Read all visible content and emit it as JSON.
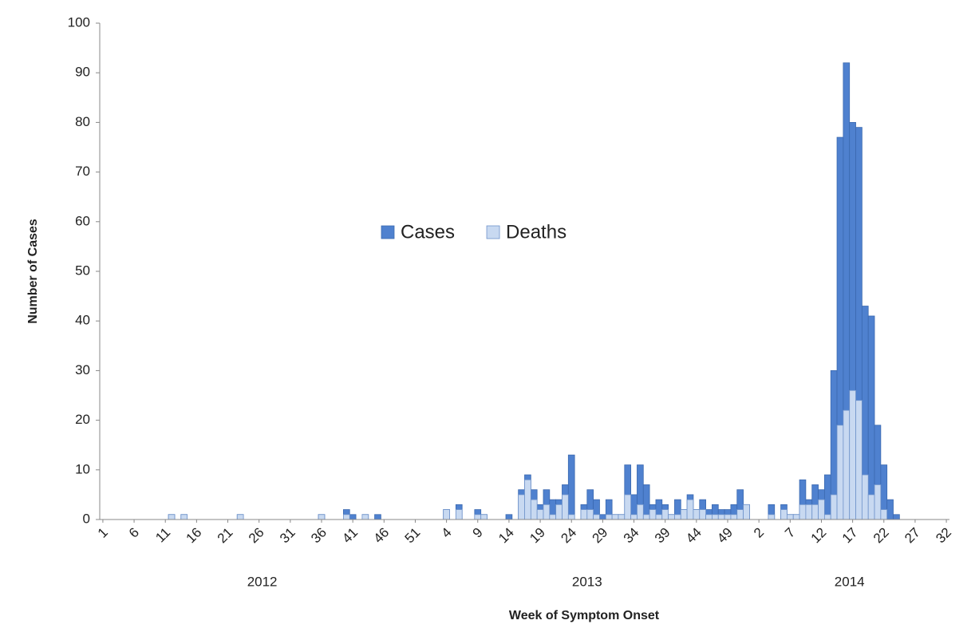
{
  "chart_data": {
    "type": "bar",
    "overlap": true,
    "x_label": "Week of Symptom Onset",
    "y_label": "Number of Cases",
    "categories": [
      "1",
      null,
      null,
      null,
      null,
      "6",
      null,
      null,
      null,
      null,
      "11",
      null,
      null,
      null,
      null,
      "16",
      null,
      null,
      null,
      null,
      "21",
      null,
      null,
      null,
      null,
      "26",
      null,
      null,
      null,
      null,
      "31",
      null,
      null,
      null,
      null,
      "36",
      null,
      null,
      null,
      null,
      "41",
      null,
      null,
      null,
      null,
      "46",
      null,
      null,
      null,
      null,
      "51",
      null,
      null,
      null,
      null,
      "4",
      null,
      null,
      null,
      null,
      "9",
      null,
      null,
      null,
      null,
      "14",
      null,
      null,
      null,
      null,
      "19",
      null,
      null,
      null,
      null,
      "24",
      null,
      null,
      null,
      null,
      "29",
      null,
      null,
      null,
      null,
      "34",
      null,
      null,
      null,
      null,
      "39",
      null,
      null,
      null,
      null,
      "44",
      null,
      null,
      null,
      null,
      "49",
      null,
      null,
      null,
      null,
      "2",
      null,
      null,
      null,
      null,
      "7",
      null,
      null,
      null,
      null,
      "12",
      null,
      null,
      null,
      null,
      "17",
      null,
      null,
      null,
      null,
      "22",
      null,
      null,
      null,
      null,
      "27",
      null,
      null,
      null,
      null,
      "32"
    ],
    "year_groups": [
      {
        "label": "2012",
        "span": 52
      },
      {
        "label": "2013",
        "span": 52
      },
      {
        "label": "2014",
        "span": 32
      }
    ],
    "series": [
      {
        "name": "Cases",
        "color": "#4f81cf",
        "edge": "#3b69b0",
        "values": [
          0,
          0,
          0,
          0,
          0,
          0,
          0,
          0,
          0,
          0,
          0,
          1,
          0,
          1,
          0,
          0,
          0,
          0,
          0,
          0,
          0,
          0,
          1,
          0,
          0,
          0,
          0,
          0,
          0,
          0,
          0,
          0,
          0,
          0,
          0,
          1,
          0,
          0,
          0,
          2,
          1,
          0,
          1,
          0,
          1,
          0,
          0,
          0,
          0,
          0,
          0,
          0,
          0,
          0,
          0,
          2,
          0,
          3,
          0,
          0,
          2,
          1,
          0,
          0,
          0,
          1,
          0,
          6,
          9,
          6,
          3,
          6,
          4,
          4,
          7,
          13,
          0,
          3,
          6,
          4,
          1,
          4,
          1,
          1,
          11,
          5,
          11,
          7,
          3,
          4,
          3,
          1,
          4,
          2,
          5,
          2,
          4,
          2,
          3,
          2,
          2,
          3,
          6,
          3,
          0,
          0,
          0,
          3,
          0,
          3,
          1,
          1,
          8,
          4,
          7,
          6,
          9,
          30,
          77,
          92,
          80,
          79,
          43,
          41,
          19,
          11,
          4,
          1,
          0,
          0,
          0,
          0,
          0,
          0,
          0,
          0
        ]
      },
      {
        "name": "Deaths",
        "color": "#c8d9f1",
        "edge": "#6f93cb",
        "values": [
          0,
          0,
          0,
          0,
          0,
          0,
          0,
          0,
          0,
          0,
          0,
          1,
          0,
          1,
          0,
          0,
          0,
          0,
          0,
          0,
          0,
          0,
          1,
          0,
          0,
          0,
          0,
          0,
          0,
          0,
          0,
          0,
          0,
          0,
          0,
          1,
          0,
          0,
          0,
          1,
          0,
          0,
          1,
          0,
          0,
          0,
          0,
          0,
          0,
          0,
          0,
          0,
          0,
          0,
          0,
          2,
          0,
          2,
          0,
          0,
          1,
          1,
          0,
          0,
          0,
          0,
          0,
          5,
          8,
          4,
          2,
          3,
          1,
          3,
          5,
          1,
          0,
          2,
          2,
          1,
          0,
          1,
          1,
          1,
          5,
          1,
          3,
          1,
          2,
          1,
          2,
          1,
          1,
          2,
          4,
          2,
          2,
          1,
          1,
          1,
          1,
          1,
          2,
          3,
          0,
          0,
          0,
          1,
          0,
          2,
          1,
          1,
          3,
          3,
          3,
          4,
          1,
          5,
          19,
          22,
          26,
          24,
          9,
          5,
          7,
          2,
          0,
          0,
          0,
          0,
          0,
          0,
          0,
          0,
          0,
          0
        ]
      }
    ],
    "ylim": [
      0,
      100
    ],
    "yticks": [
      0,
      10,
      20,
      30,
      40,
      50,
      60,
      70,
      80,
      90,
      100
    ],
    "grid": false,
    "legend": "center"
  }
}
